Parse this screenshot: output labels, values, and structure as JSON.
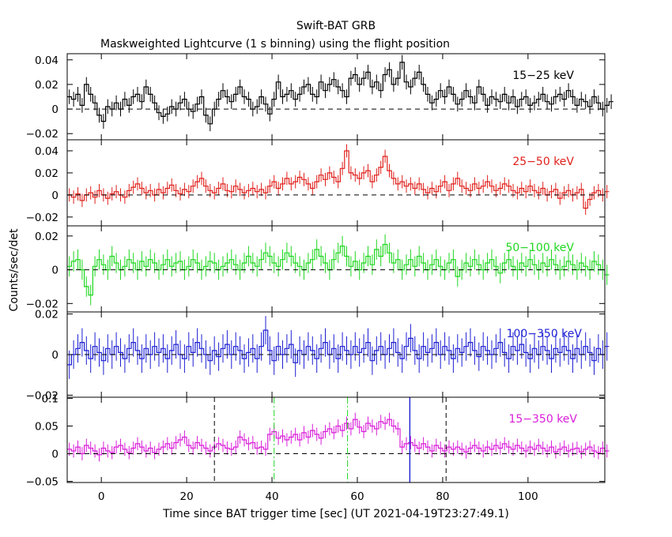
{
  "title": "Swift-BAT GRB",
  "subtitle": "Maskweighted Lightcurve (1 s binning) using the flight position",
  "chart_data": {
    "type": "line",
    "style": "step histogram with error bars, 1 s bins",
    "xlabel": "Time since BAT trigger time [sec] (UT 2021-04-19T23:27:49.1)",
    "ylabel": "Counts/sec/det",
    "xlim": [
      -8,
      118
    ],
    "x_ticks": [
      0,
      20,
      40,
      60,
      80,
      100
    ],
    "panels": [
      {
        "name": "15-25 keV",
        "label": "15−25 keV",
        "color": "#000000",
        "ylim": [
          -0.025,
          0.045
        ],
        "y_ticks": [
          -0.02,
          0,
          0.02,
          0.04
        ],
        "y_tick_labels": [
          "−0.02",
          "0",
          "0.02",
          "0.04"
        ],
        "t_start": -8,
        "err": 0.006,
        "values": [
          0.01,
          0.008,
          0.012,
          0.003,
          0.02,
          0.012,
          0.005,
          -0.005,
          -0.01,
          0.002,
          0.0,
          0.005,
          0.0,
          0.008,
          0.003,
          0.01,
          0.012,
          0.006,
          0.018,
          0.012,
          0.005,
          -0.003,
          -0.006,
          -0.004,
          0.002,
          0.0,
          0.005,
          0.008,
          0.0,
          -0.002,
          0.004,
          0.01,
          -0.005,
          -0.012,
          0.0,
          0.008,
          0.015,
          0.01,
          0.006,
          0.012,
          0.018,
          0.01,
          0.008,
          0.0,
          0.002,
          0.01,
          0.004,
          -0.004,
          0.008,
          0.022,
          0.01,
          0.012,
          0.015,
          0.008,
          0.012,
          0.018,
          0.02,
          0.012,
          0.01,
          0.022,
          0.015,
          0.02,
          0.024,
          0.018,
          0.015,
          0.01,
          0.025,
          0.028,
          0.02,
          0.025,
          0.03,
          0.018,
          0.022,
          0.015,
          0.028,
          0.032,
          0.02,
          0.025,
          0.038,
          0.022,
          0.018,
          0.025,
          0.03,
          0.02,
          0.012,
          0.005,
          0.008,
          0.015,
          0.01,
          0.018,
          0.012,
          0.004,
          0.008,
          0.015,
          0.01,
          0.005,
          0.018,
          0.012,
          0.003,
          0.01,
          0.008,
          0.006,
          0.012,
          0.005,
          0.01,
          0.002,
          0.008,
          0.01,
          0.003,
          0.005,
          0.008,
          0.012,
          0.006,
          0.004,
          0.01,
          0.012,
          0.008,
          0.015,
          0.01,
          0.003,
          0.008,
          0.006,
          0.002,
          0.01,
          0.005,
          0.0,
          0.003,
          0.006
        ]
      },
      {
        "name": "25-50 keV",
        "label": "25−50 keV",
        "color": "#e0201b",
        "ylim": [
          -0.028,
          0.05
        ],
        "y_ticks": [
          -0.02,
          0,
          0.02,
          0.04
        ],
        "y_tick_labels": [
          "−0.02",
          "0",
          "0.02",
          "0.04"
        ],
        "t_start": -8,
        "err": 0.006,
        "values": [
          0.0,
          -0.002,
          0.001,
          -0.005,
          0.0,
          0.002,
          -0.002,
          0.004,
          0.0,
          -0.003,
          0.001,
          0.003,
          0.0,
          -0.002,
          0.004,
          0.007,
          0.01,
          0.006,
          0.002,
          0.004,
          0.0,
          0.005,
          0.002,
          0.006,
          0.009,
          0.004,
          0.001,
          0.005,
          0.003,
          0.008,
          0.012,
          0.015,
          0.008,
          0.004,
          0.002,
          0.006,
          0.01,
          0.004,
          0.003,
          0.008,
          0.005,
          0.002,
          0.004,
          0.006,
          0.003,
          0.005,
          0.002,
          0.008,
          0.012,
          0.006,
          0.01,
          0.015,
          0.01,
          0.012,
          0.016,
          0.014,
          0.01,
          0.006,
          0.012,
          0.018,
          0.014,
          0.02,
          0.016,
          0.012,
          0.024,
          0.04,
          0.02,
          0.018,
          0.015,
          0.02,
          0.022,
          0.012,
          0.018,
          0.025,
          0.035,
          0.022,
          0.015,
          0.01,
          0.012,
          0.008,
          0.01,
          0.006,
          0.01,
          0.005,
          0.002,
          0.006,
          0.003,
          0.008,
          0.012,
          0.004,
          0.01,
          0.015,
          0.008,
          0.006,
          0.004,
          0.01,
          0.006,
          0.008,
          0.012,
          0.008,
          0.004,
          0.006,
          0.01,
          0.008,
          0.004,
          0.002,
          0.006,
          0.003,
          0.008,
          0.004,
          0.002,
          0.006,
          0.0,
          0.003,
          0.005,
          -0.003,
          0.002,
          0.004,
          0.0,
          0.002,
          0.005,
          -0.012,
          -0.004,
          0.002,
          0.004,
          0.0,
          0.003
        ]
      },
      {
        "name": "50-100 keV",
        "label": "50−100 keV",
        "color": "#1fd71f",
        "ylim": [
          -0.025,
          0.026
        ],
        "y_ticks": [
          -0.02,
          0,
          0.02
        ],
        "y_tick_labels": [
          "−0.02",
          "0",
          "0.02"
        ],
        "t_start": -8,
        "err": 0.006,
        "values": [
          0.002,
          0.005,
          0.006,
          0.0,
          -0.01,
          -0.015,
          0.002,
          0.006,
          0.003,
          0.0,
          0.008,
          0.004,
          0.0,
          0.002,
          0.006,
          0.004,
          0.0,
          0.005,
          0.002,
          0.006,
          0.004,
          0.0,
          0.003,
          0.006,
          0.002,
          0.004,
          0.005,
          0.0,
          0.002,
          0.006,
          0.004,
          0.0,
          0.002,
          0.005,
          0.004,
          0.0,
          0.002,
          0.004,
          0.006,
          0.003,
          0.0,
          0.004,
          0.008,
          0.004,
          0.002,
          0.006,
          0.01,
          0.008,
          0.004,
          0.002,
          0.006,
          0.01,
          0.008,
          0.004,
          0.002,
          0.0,
          0.004,
          0.006,
          0.012,
          0.008,
          0.004,
          0.0,
          0.006,
          0.01,
          0.014,
          0.008,
          0.002,
          0.005,
          0.0,
          0.004,
          0.008,
          0.003,
          0.012,
          0.008,
          0.015,
          0.01,
          0.004,
          0.006,
          0.0,
          0.003,
          0.006,
          0.002,
          0.008,
          0.004,
          0.0,
          0.003,
          0.006,
          0.002,
          0.0,
          0.004,
          0.006,
          -0.004,
          0.0,
          0.004,
          0.002,
          0.006,
          0.003,
          0.0,
          0.004,
          0.006,
          0.002,
          -0.002,
          0.004,
          0.006,
          0.002,
          0.0,
          0.004,
          0.002,
          0.006,
          0.003,
          0.0,
          0.004,
          0.002,
          0.006,
          0.003,
          0.0,
          0.002,
          0.005,
          0.003,
          0.0,
          0.004,
          0.002,
          0.0,
          0.005,
          0.003,
          0.0,
          -0.003
        ]
      },
      {
        "name": "100-350 keV",
        "label": "100−350 keV",
        "color": "#1d1fd4",
        "ylim": [
          -0.021,
          0.021
        ],
        "y_ticks": [
          -0.02,
          0,
          0.02
        ],
        "y_tick_labels": [
          "−0.02",
          "0",
          "0.02"
        ],
        "t_start": -8,
        "err": 0.007,
        "values": [
          -0.005,
          0.0,
          0.003,
          0.006,
          0.002,
          -0.002,
          0.004,
          0.001,
          -0.003,
          0.003,
          0.0,
          0.004,
          0.001,
          -0.002,
          0.003,
          0.006,
          0.002,
          -0.002,
          0.003,
          0.0,
          0.004,
          0.001,
          0.003,
          -0.002,
          0.002,
          0.005,
          0.0,
          -0.002,
          0.004,
          0.001,
          0.006,
          0.003,
          0.0,
          -0.003,
          0.002,
          -0.001,
          0.003,
          0.005,
          0.0,
          0.004,
          0.002,
          -0.002,
          0.001,
          0.003,
          -0.002,
          0.004,
          0.012,
          0.002,
          -0.003,
          0.004,
          0.0,
          0.003,
          0.005,
          -0.004,
          0.002,
          0.0,
          0.004,
          0.002,
          -0.002,
          0.003,
          0.006,
          0.0,
          0.003,
          -0.002,
          0.004,
          0.002,
          0.0,
          0.004,
          0.001,
          0.003,
          0.006,
          -0.003,
          0.002,
          0.004,
          0.0,
          0.003,
          0.006,
          0.001,
          -0.002,
          0.004,
          0.008,
          0.002,
          -0.002,
          0.004,
          0.001,
          0.003,
          0.006,
          0.0,
          0.004,
          0.002,
          -0.002,
          0.003,
          0.001,
          0.004,
          0.006,
          0.002,
          -0.001,
          0.004,
          0.002,
          0.0,
          0.003,
          0.006,
          0.001,
          -0.002,
          0.004,
          0.002,
          0.005,
          0.001,
          -0.002,
          0.003,
          0.0,
          0.004,
          0.002,
          -0.002,
          0.003,
          0.001,
          0.004,
          0.002,
          -0.002,
          0.003,
          0.0,
          0.004,
          0.001,
          -0.003,
          0.003,
          0.0,
          0.004
        ]
      },
      {
        "name": "15-350 keV",
        "label": "15−350 keV",
        "color": "#d91ed9",
        "ylim": [
          -0.052,
          0.102
        ],
        "y_ticks": [
          -0.05,
          0,
          0.05,
          0.1
        ],
        "y_tick_labels": [
          "−0.05",
          "0",
          "0.05",
          "0.1"
        ],
        "t_start": -8,
        "err": 0.012,
        "values": [
          0.008,
          0.005,
          0.012,
          0.0,
          0.015,
          0.01,
          0.005,
          -0.002,
          0.01,
          0.005,
          0.002,
          0.012,
          0.015,
          0.008,
          0.002,
          0.01,
          0.018,
          0.012,
          0.005,
          0.01,
          0.002,
          0.008,
          0.012,
          0.018,
          0.01,
          0.02,
          0.025,
          0.03,
          0.015,
          0.01,
          0.02,
          0.015,
          0.01,
          0.005,
          0.012,
          0.018,
          0.015,
          0.01,
          0.008,
          0.012,
          0.03,
          0.025,
          0.018,
          0.02,
          0.01,
          0.012,
          0.008,
          0.035,
          0.04,
          0.028,
          0.032,
          0.025,
          0.03,
          0.035,
          0.025,
          0.038,
          0.03,
          0.042,
          0.035,
          0.028,
          0.04,
          0.045,
          0.038,
          0.05,
          0.042,
          0.055,
          0.045,
          0.062,
          0.048,
          0.04,
          0.055,
          0.05,
          0.045,
          0.058,
          0.055,
          0.062,
          0.05,
          0.045,
          0.012,
          0.018,
          0.02,
          0.015,
          0.01,
          0.018,
          0.012,
          0.005,
          0.015,
          0.01,
          0.005,
          0.012,
          0.008,
          0.012,
          0.008,
          0.003,
          0.01,
          0.015,
          0.01,
          0.005,
          0.012,
          0.008,
          0.015,
          0.01,
          0.018,
          0.012,
          0.008,
          0.015,
          0.01,
          0.005,
          0.012,
          0.008,
          0.015,
          0.01,
          0.005,
          0.012,
          0.003,
          0.008,
          0.012,
          0.005,
          0.008,
          0.01,
          0.003,
          0.008,
          0.012,
          0.005,
          0.002,
          0.01,
          0.005
        ]
      }
    ],
    "markers": [
      {
        "panel": "15-350 keV",
        "x": 26.5,
        "color": "#000000",
        "style": "dashed"
      },
      {
        "panel": "15-350 keV",
        "x": 80.8,
        "color": "#000000",
        "style": "dashed"
      },
      {
        "panel": "15-350 keV",
        "x": 40.5,
        "color": "#1fd71f",
        "style": "dashdot"
      },
      {
        "panel": "15-350 keV",
        "x": 57.7,
        "color": "#1fd71f",
        "style": "dashdot"
      },
      {
        "panel": "15-350 keV",
        "x": 72.3,
        "color": "#1d1fd4",
        "style": "solid"
      }
    ]
  }
}
